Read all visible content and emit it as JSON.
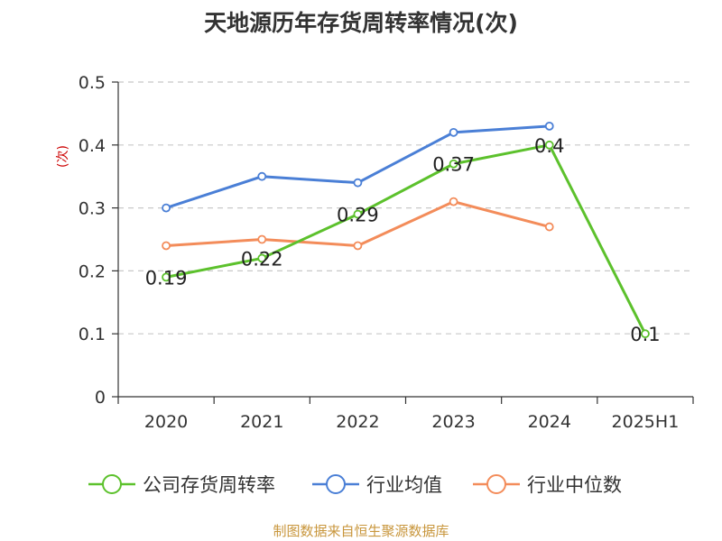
{
  "chart_data": {
    "type": "line",
    "title": "天地源历年存货周转率情况(次)",
    "ylabel": "(次)",
    "xlabel": "",
    "categories": [
      "2020",
      "2021",
      "2022",
      "2023",
      "2024",
      "2025H1"
    ],
    "ylim": [
      0,
      0.5
    ],
    "yticks": [
      "0",
      "0.1",
      "0.2",
      "0.3",
      "0.4",
      "0.5"
    ],
    "grid": true,
    "legend_position": "bottom",
    "series": [
      {
        "name": "公司存货周转率",
        "color": "#5cc12c",
        "values": [
          0.19,
          0.22,
          0.29,
          0.37,
          0.4,
          0.1
        ],
        "labels": [
          "0.19",
          "0.22",
          "0.29",
          "0.37",
          "0.4",
          "0.1"
        ]
      },
      {
        "name": "行业均值",
        "color": "#4a7fd6",
        "values": [
          0.3,
          0.35,
          0.34,
          0.42,
          0.43,
          null
        ]
      },
      {
        "name": "行业中位数",
        "color": "#f38c5a",
        "values": [
          0.24,
          0.25,
          0.24,
          0.31,
          0.27,
          null
        ]
      }
    ]
  },
  "footer": {
    "source": "制图数据来自恒生聚源数据库"
  }
}
